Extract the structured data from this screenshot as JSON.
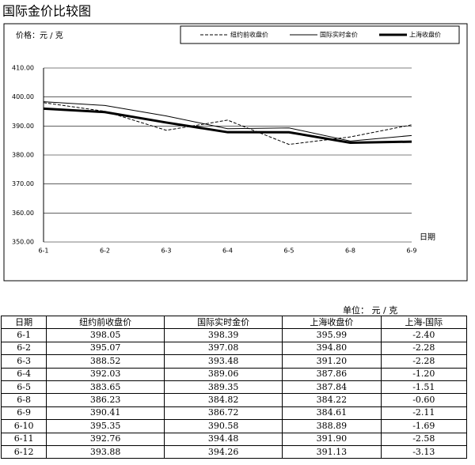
{
  "chart_data": {
    "type": "line",
    "title": "国际金价比较图",
    "y_label": "价格：元 / 克",
    "x_label": "日期",
    "categories": [
      "6-1",
      "6-2",
      "6-3",
      "6-4",
      "6-5",
      "6-8",
      "6-9"
    ],
    "series": [
      {
        "name": "纽约前收盘价",
        "color": "#000000",
        "width": 1,
        "dashed": true,
        "values": [
          398.05,
          395.07,
          388.52,
          392.03,
          383.65,
          386.23,
          390.41
        ]
      },
      {
        "name": "国际实时金价",
        "color": "#000000",
        "width": 1,
        "dashed": false,
        "values": [
          398.39,
          397.08,
          393.48,
          389.06,
          389.35,
          384.82,
          386.72
        ]
      },
      {
        "name": "上海收盘价",
        "color": "#000000",
        "width": 3,
        "dashed": false,
        "values": [
          395.99,
          394.8,
          391.2,
          387.86,
          387.84,
          384.22,
          384.61
        ]
      }
    ],
    "ylim": [
      350,
      410
    ],
    "yticks": [
      {
        "value": 350,
        "label": "350.00"
      },
      {
        "value": 360,
        "label": "360.00"
      },
      {
        "value": 370,
        "label": "370.00"
      },
      {
        "value": 380,
        "label": "380.00"
      },
      {
        "value": 390,
        "label": "390.00"
      },
      {
        "value": 400,
        "label": "400.00"
      },
      {
        "value": 410,
        "label": "410.00"
      }
    ],
    "grid": true,
    "legend": "top-right"
  },
  "table": {
    "unit": "单位： 元 / 克",
    "header": [
      "日期",
      "纽约前收盘价",
      "国际实时金价",
      "上海收盘价",
      "上海-国际"
    ],
    "rows": [
      [
        "6-1",
        "398.05",
        "398.39",
        "395.99",
        "-2.40"
      ],
      [
        "6-2",
        "395.07",
        "397.08",
        "394.80",
        "-2.28"
      ],
      [
        "6-3",
        "388.52",
        "393.48",
        "391.20",
        "-2.28"
      ],
      [
        "6-4",
        "392.03",
        "389.06",
        "387.86",
        "-1.20"
      ],
      [
        "6-5",
        "383.65",
        "389.35",
        "387.84",
        "-1.51"
      ],
      [
        "6-8",
        "386.23",
        "384.82",
        "384.22",
        "-0.60"
      ],
      [
        "6-9",
        "390.41",
        "386.72",
        "384.61",
        "-2.11"
      ],
      [
        "6-10",
        "395.35",
        "390.58",
        "388.89",
        "-1.69"
      ],
      [
        "6-11",
        "392.76",
        "394.48",
        "391.90",
        "-2.58"
      ],
      [
        "6-12",
        "393.88",
        "394.26",
        "391.13",
        "-3.13"
      ]
    ]
  }
}
